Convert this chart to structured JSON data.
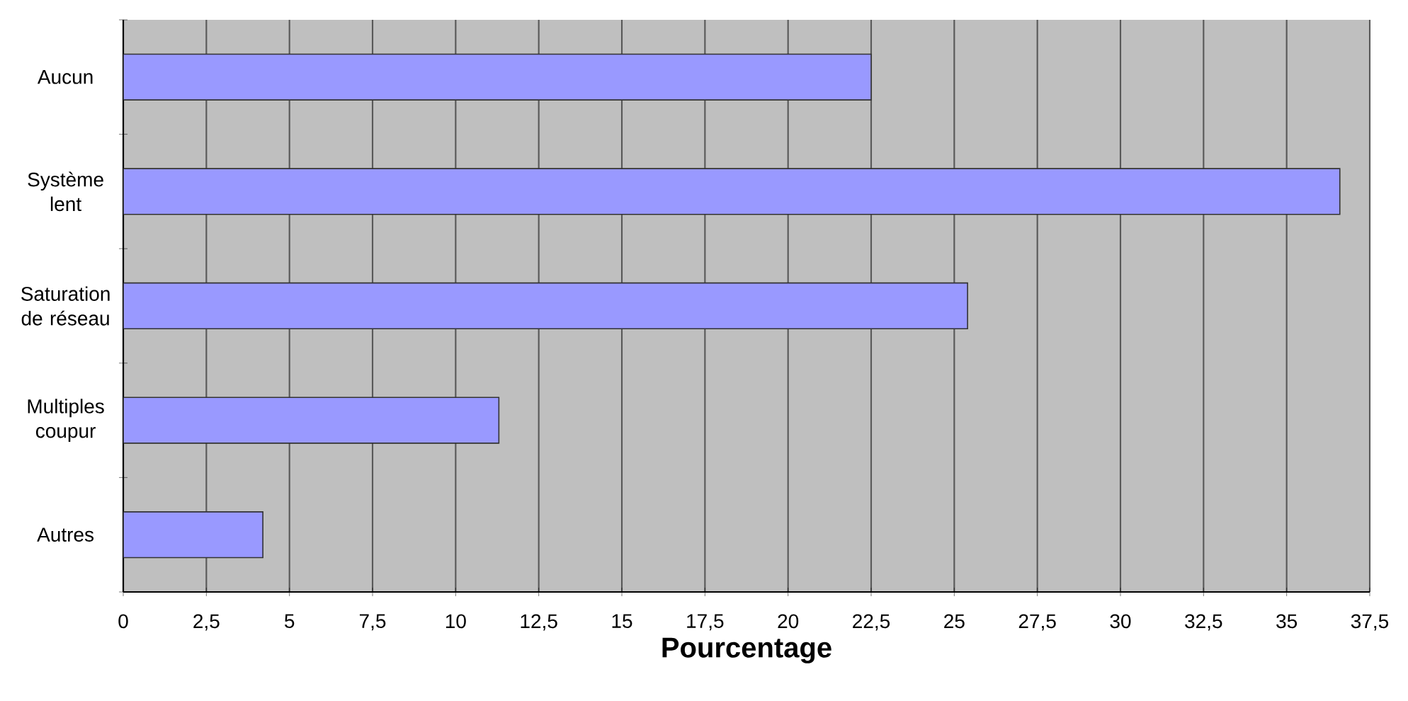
{
  "chart_data": {
    "type": "bar",
    "orientation": "horizontal",
    "xlabel": "Pourcentage",
    "categories": [
      "Aucun",
      "Système lent",
      "Saturation de réseau",
      "Multiples coupur",
      "Autres"
    ],
    "values": [
      22.5,
      36.6,
      25.4,
      11.3,
      4.2
    ],
    "color": "#9999ff",
    "xlim": [
      0,
      37.5
    ],
    "xticks": [
      0,
      {
        "value": 2.5,
        "label": "2,5"
      },
      5,
      {
        "value": 7.5,
        "label": "7,5"
      },
      10,
      {
        "value": 12.5,
        "label": "12,5"
      },
      15,
      {
        "value": 17.5,
        "label": "17,5"
      },
      20,
      {
        "value": 22.5,
        "label": "22,5"
      },
      25,
      {
        "value": 27.5,
        "label": "27,5"
      },
      30,
      {
        "value": 32.5,
        "label": "32,5"
      },
      35,
      {
        "value": 37.5,
        "label": "37,5"
      }
    ],
    "grid": "x"
  }
}
